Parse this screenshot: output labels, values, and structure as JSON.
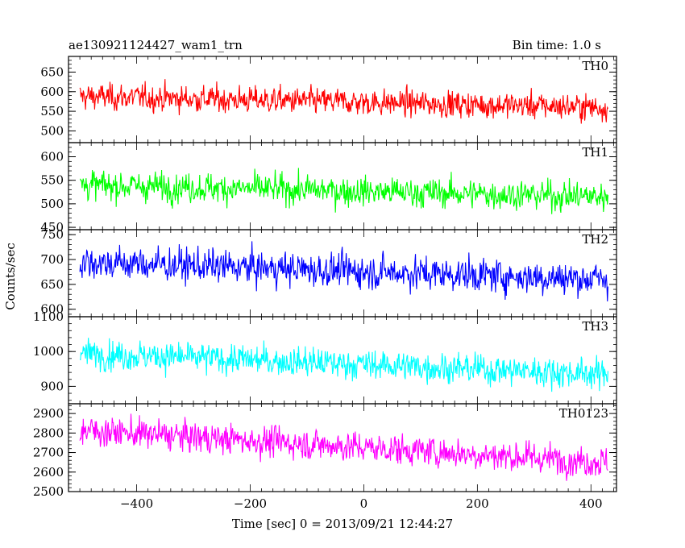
{
  "header": {
    "title": "ae130921124427_wam1_trn",
    "bin_time": "Bin time: 1.0 s"
  },
  "chart_data": {
    "type": "line",
    "title": "ae130921124427_wam1_trn",
    "subtitle": "Bin time: 1.0 s",
    "xlabel": "Time [sec] 0 = 2013/09/21 12:44:27",
    "ylabel": "Counts/sec",
    "xlim": [
      -520,
      445
    ],
    "x_range": [
      -500,
      430
    ],
    "xticks": [
      -400,
      -200,
      0,
      200,
      400
    ],
    "xtick_labels": [
      "−400",
      "−200",
      "0",
      "200",
      "400"
    ],
    "grid": false,
    "series": [
      {
        "name": "TH0",
        "color": "#ff0000",
        "ylim": [
          470,
          690
        ],
        "yticks": [
          500,
          550,
          600,
          650
        ],
        "ytick_labels": [
          "500",
          "550",
          "600",
          "650"
        ],
        "start_mean": 588,
        "end_mean": 560,
        "noise": 26
      },
      {
        "name": "TH1",
        "color": "#00ff00",
        "ylim": [
          445,
          630
        ],
        "yticks": [
          450,
          500,
          550,
          600
        ],
        "ytick_labels": [
          "450",
          "500",
          "550",
          "600"
        ],
        "start_mean": 540,
        "end_mean": 515,
        "noise": 24
      },
      {
        "name": "TH2",
        "color": "#0000ff",
        "ylim": [
          585,
          760
        ],
        "yticks": [
          600,
          650,
          700,
          750
        ],
        "ytick_labels": [
          "600",
          "650",
          "700",
          "750"
        ],
        "start_mean": 695,
        "end_mean": 660,
        "noise": 26
      },
      {
        "name": "TH3",
        "color": "#00ffff",
        "ylim": [
          850,
          1100
        ],
        "yticks": [
          900,
          1000,
          1100
        ],
        "ytick_labels": [
          "900",
          "1000",
          "1100"
        ],
        "start_mean": 995,
        "end_mean": 935,
        "noise": 33
      },
      {
        "name": "TH0123",
        "color": "#ff00ff",
        "ylim": [
          2500,
          2950
        ],
        "yticks": [
          2500,
          2600,
          2700,
          2800,
          2900
        ],
        "ytick_labels": [
          "2500",
          "2600",
          "2700",
          "2800",
          "2900"
        ],
        "start_mean": 2815,
        "end_mean": 2650,
        "noise": 60
      }
    ]
  }
}
